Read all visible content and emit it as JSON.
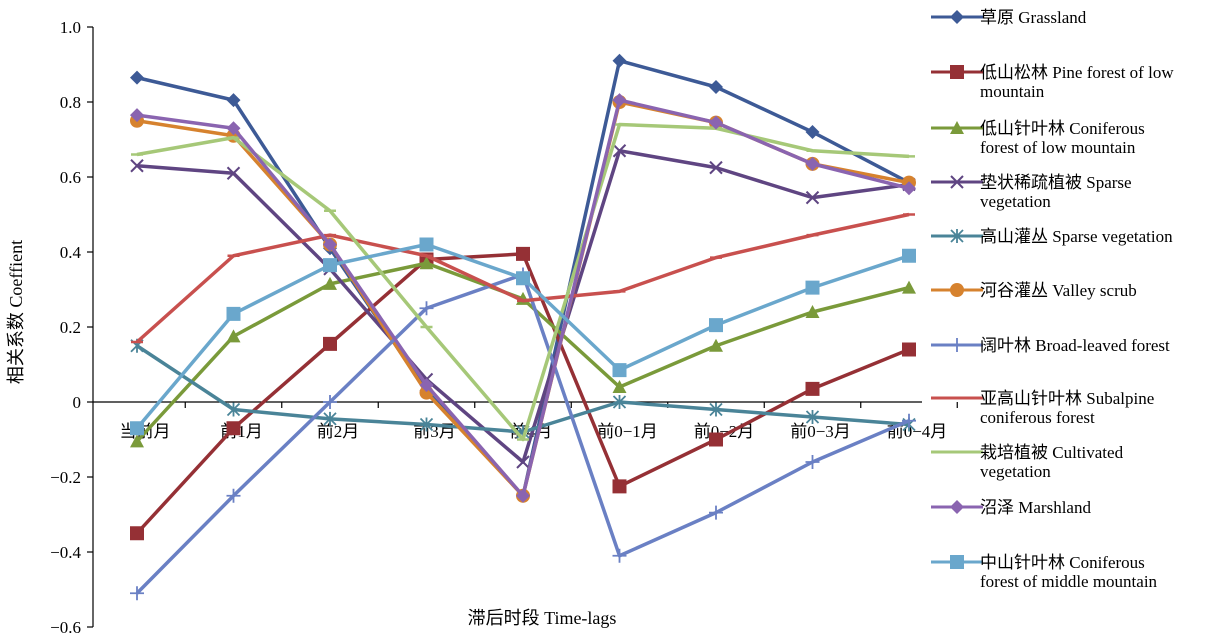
{
  "chart_data": {
    "type": "line",
    "title": "",
    "xlabel": "滞后时段 Time-lags",
    "ylabel": "相关系数 Coeffient",
    "ylim": [
      -0.6,
      1.0
    ],
    "yticks": [
      1.0,
      0.8,
      0.6,
      0.4,
      0.2,
      0,
      -0.2,
      -0.4,
      -0.6
    ],
    "ytick_labels": [
      "1.0",
      "0.8",
      "0.6",
      "0.4",
      "0.2",
      "0",
      "−0.2",
      "−0.4",
      "−0.6"
    ],
    "categories": [
      "当前月",
      "前1月",
      "前2月",
      "前3月",
      "前4月",
      "前0−1月",
      "前0−2月",
      "前0−3月",
      "前0−4月"
    ],
    "legend_position": "right",
    "grid": false,
    "series": [
      {
        "name": "草原 Grassland",
        "color": "#3d5a96",
        "marker": "diamond",
        "values": [
          0.865,
          0.805,
          0.41,
          0.03,
          -0.25,
          0.91,
          0.84,
          0.72,
          0.585
        ]
      },
      {
        "name": "低山松林 Pine forest of low mountain",
        "color": "#953035",
        "marker": "square",
        "values": [
          -0.35,
          -0.07,
          0.155,
          0.38,
          0.395,
          -0.225,
          -0.1,
          0.035,
          0.14
        ]
      },
      {
        "name": "低山针叶林 Coniferous forest of low mountain",
        "color": "#7a9a3a",
        "marker": "triangle",
        "values": [
          -0.105,
          0.175,
          0.315,
          0.37,
          0.275,
          0.04,
          0.15,
          0.24,
          0.305
        ]
      },
      {
        "name": "垫状稀疏植被 Sparse vegetation",
        "color": "#5f4582",
        "marker": "x",
        "values": [
          0.63,
          0.61,
          0.355,
          0.06,
          -0.16,
          0.67,
          0.625,
          0.545,
          0.58
        ]
      },
      {
        "name": "高山灌丛 Sparse vegetation",
        "color": "#4a8498",
        "marker": "star",
        "values": [
          0.15,
          -0.02,
          -0.045,
          -0.06,
          -0.08,
          0.0,
          -0.02,
          -0.04,
          -0.06
        ]
      },
      {
        "name": "河谷灌丛 Valley scrub",
        "color": "#d6822e",
        "marker": "circle",
        "values": [
          0.75,
          0.71,
          0.42,
          0.025,
          -0.25,
          0.8,
          0.745,
          0.635,
          0.585
        ]
      },
      {
        "name": "阔叶林 Broad-leaved forest",
        "color": "#6a80c4",
        "marker": "plus",
        "values": [
          -0.51,
          -0.25,
          0.0,
          0.25,
          0.34,
          -0.41,
          -0.295,
          -0.16,
          -0.05
        ]
      },
      {
        "name": "亚高山针叶林 Subalpine coniferous forest",
        "color": "#c8504e",
        "marker": "dash",
        "values": [
          0.16,
          0.39,
          0.445,
          0.39,
          0.27,
          0.295,
          0.385,
          0.445,
          0.5
        ]
      },
      {
        "name": "栽培植被 Cultivated vegetation",
        "color": "#a6c878",
        "marker": "dash",
        "values": [
          0.66,
          0.705,
          0.51,
          0.2,
          -0.1,
          0.74,
          0.73,
          0.67,
          0.655
        ]
      },
      {
        "name": "沼泽 Marshland",
        "color": "#8a64b0",
        "marker": "diamond",
        "values": [
          0.765,
          0.73,
          0.42,
          0.045,
          -0.25,
          0.805,
          0.745,
          0.635,
          0.57
        ]
      },
      {
        "name": "中山针叶林 Coniferous forest of middle mountain",
        "color": "#6aa7cc",
        "marker": "square",
        "values": [
          -0.07,
          0.235,
          0.365,
          0.42,
          0.33,
          0.085,
          0.205,
          0.305,
          0.39
        ]
      }
    ]
  },
  "legend": {
    "items": [
      {
        "lines": [
          "草原 Grassland"
        ]
      },
      {
        "lines": [
          "低山松林 Pine forest of low",
          "mountain"
        ]
      },
      {
        "lines": [
          "低山针叶林 Coniferous",
          "forest of low mountain"
        ]
      },
      {
        "lines": [
          "垫状稀疏植被 Sparse",
          "vegetation"
        ]
      },
      {
        "lines": [
          "高山灌丛 Sparse vegetation"
        ]
      },
      {
        "lines": [
          "河谷灌丛 Valley scrub"
        ]
      },
      {
        "lines": [
          "阔叶林 Broad-leaved forest"
        ]
      },
      {
        "lines": [
          "亚高山针叶林 Subalpine",
          "coniferous forest"
        ]
      },
      {
        "lines": [
          "栽培植被 Cultivated",
          "vegetation"
        ]
      },
      {
        "lines": [
          "沼泽 Marshland"
        ]
      },
      {
        "lines": [
          "中山针叶林 Coniferous",
          "forest of middle mountain"
        ]
      }
    ]
  }
}
